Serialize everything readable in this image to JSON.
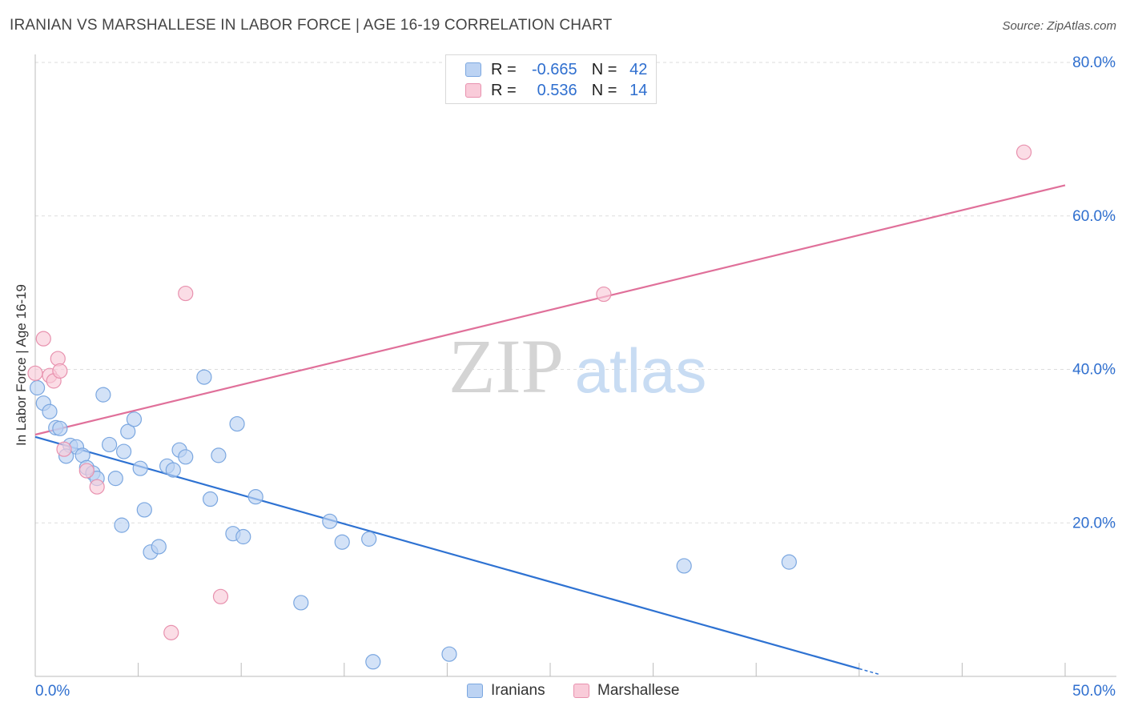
{
  "title": "IRANIAN VS MARSHALLESE IN LABOR FORCE | AGE 16-19 CORRELATION CHART",
  "source": "Source: ZipAtlas.com",
  "watermark": {
    "part1": "ZIP",
    "part2": "atlas"
  },
  "legend": {
    "row1": {
      "r_label": "R =",
      "r_value": "-0.665",
      "n_label": "N =",
      "n_value": "42"
    },
    "row2": {
      "r_label": "R =",
      "r_value": "0.536",
      "n_label": "N =",
      "n_value": "14"
    }
  },
  "bottom_legend": {
    "series1": "Iranians",
    "series2": "Marshallese"
  },
  "colors": {
    "blue_fill": "#bcd3f3",
    "blue_stroke": "#7ba7e0",
    "blue_line": "#2e72d2",
    "pink_fill": "#f9cbd9",
    "pink_stroke": "#e891ae",
    "pink_line": "#e0709a",
    "tick_label": "#2f6fcf",
    "grid": "#dddddd"
  },
  "chart_data": {
    "type": "scatter",
    "title": "IRANIAN VS MARSHALLESE IN LABOR FORCE | AGE 16-19 CORRELATION CHART",
    "xlabel": "",
    "ylabel": "In Labor Force | Age 16-19",
    "xlim": [
      0,
      50
    ],
    "ylim": [
      0,
      80
    ],
    "x_tick_labels": [
      "0.0%",
      "50.0%"
    ],
    "y_ticks": [
      20,
      40,
      60,
      80
    ],
    "y_tick_labels": [
      "20.0%",
      "40.0%",
      "60.0%",
      "80.0%"
    ],
    "grid": true,
    "legend_position": "top-center",
    "series": [
      {
        "name": "Iranians",
        "r": -0.665,
        "n": 42,
        "points": [
          {
            "x": 0.1,
            "y": 37.6
          },
          {
            "x": 0.4,
            "y": 35.6
          },
          {
            "x": 0.7,
            "y": 34.5
          },
          {
            "x": 1.0,
            "y": 32.4
          },
          {
            "x": 1.2,
            "y": 32.3
          },
          {
            "x": 1.7,
            "y": 30.1
          },
          {
            "x": 2.0,
            "y": 29.9
          },
          {
            "x": 2.3,
            "y": 28.8
          },
          {
            "x": 1.5,
            "y": 28.7
          },
          {
            "x": 2.5,
            "y": 27.2
          },
          {
            "x": 2.8,
            "y": 26.5
          },
          {
            "x": 3.0,
            "y": 25.8
          },
          {
            "x": 3.3,
            "y": 36.7
          },
          {
            "x": 3.6,
            "y": 30.2
          },
          {
            "x": 3.9,
            "y": 25.8
          },
          {
            "x": 4.2,
            "y": 19.7
          },
          {
            "x": 4.3,
            "y": 29.3
          },
          {
            "x": 4.5,
            "y": 31.9
          },
          {
            "x": 4.8,
            "y": 33.5
          },
          {
            "x": 5.1,
            "y": 27.1
          },
          {
            "x": 5.3,
            "y": 21.7
          },
          {
            "x": 5.6,
            "y": 16.2
          },
          {
            "x": 6.0,
            "y": 16.9
          },
          {
            "x": 6.4,
            "y": 27.4
          },
          {
            "x": 6.7,
            "y": 26.9
          },
          {
            "x": 7.0,
            "y": 29.5
          },
          {
            "x": 7.3,
            "y": 28.6
          },
          {
            "x": 8.2,
            "y": 39.0
          },
          {
            "x": 8.5,
            "y": 23.1
          },
          {
            "x": 8.9,
            "y": 28.8
          },
          {
            "x": 9.6,
            "y": 18.6
          },
          {
            "x": 9.8,
            "y": 32.9
          },
          {
            "x": 10.1,
            "y": 18.2
          },
          {
            "x": 10.7,
            "y": 23.4
          },
          {
            "x": 12.9,
            "y": 9.6
          },
          {
            "x": 14.3,
            "y": 20.2
          },
          {
            "x": 14.9,
            "y": 17.5
          },
          {
            "x": 16.2,
            "y": 17.9
          },
          {
            "x": 16.4,
            "y": 1.9
          },
          {
            "x": 20.1,
            "y": 2.9
          },
          {
            "x": 31.5,
            "y": 14.4
          },
          {
            "x": 36.6,
            "y": 14.9
          }
        ],
        "trendline": {
          "x1": 0,
          "y1": 31.2,
          "x2": 40,
          "y2": 1.0,
          "dashed_extension_to_x": 41.0
        }
      },
      {
        "name": "Marshallese",
        "r": 0.536,
        "n": 14,
        "points": [
          {
            "x": 0.0,
            "y": 39.5
          },
          {
            "x": 0.4,
            "y": 44.0
          },
          {
            "x": 0.7,
            "y": 39.2
          },
          {
            "x": 0.9,
            "y": 38.5
          },
          {
            "x": 1.1,
            "y": 41.4
          },
          {
            "x": 1.2,
            "y": 39.8
          },
          {
            "x": 1.4,
            "y": 29.6
          },
          {
            "x": 2.5,
            "y": 26.8
          },
          {
            "x": 3.0,
            "y": 24.7
          },
          {
            "x": 6.6,
            "y": 5.7
          },
          {
            "x": 7.3,
            "y": 49.9
          },
          {
            "x": 9.0,
            "y": 10.4
          },
          {
            "x": 27.6,
            "y": 49.8
          },
          {
            "x": 48.0,
            "y": 68.3
          }
        ],
        "trendline": {
          "x1": 0,
          "y1": 31.5,
          "x2": 50,
          "y2": 64.0
        }
      }
    ]
  }
}
